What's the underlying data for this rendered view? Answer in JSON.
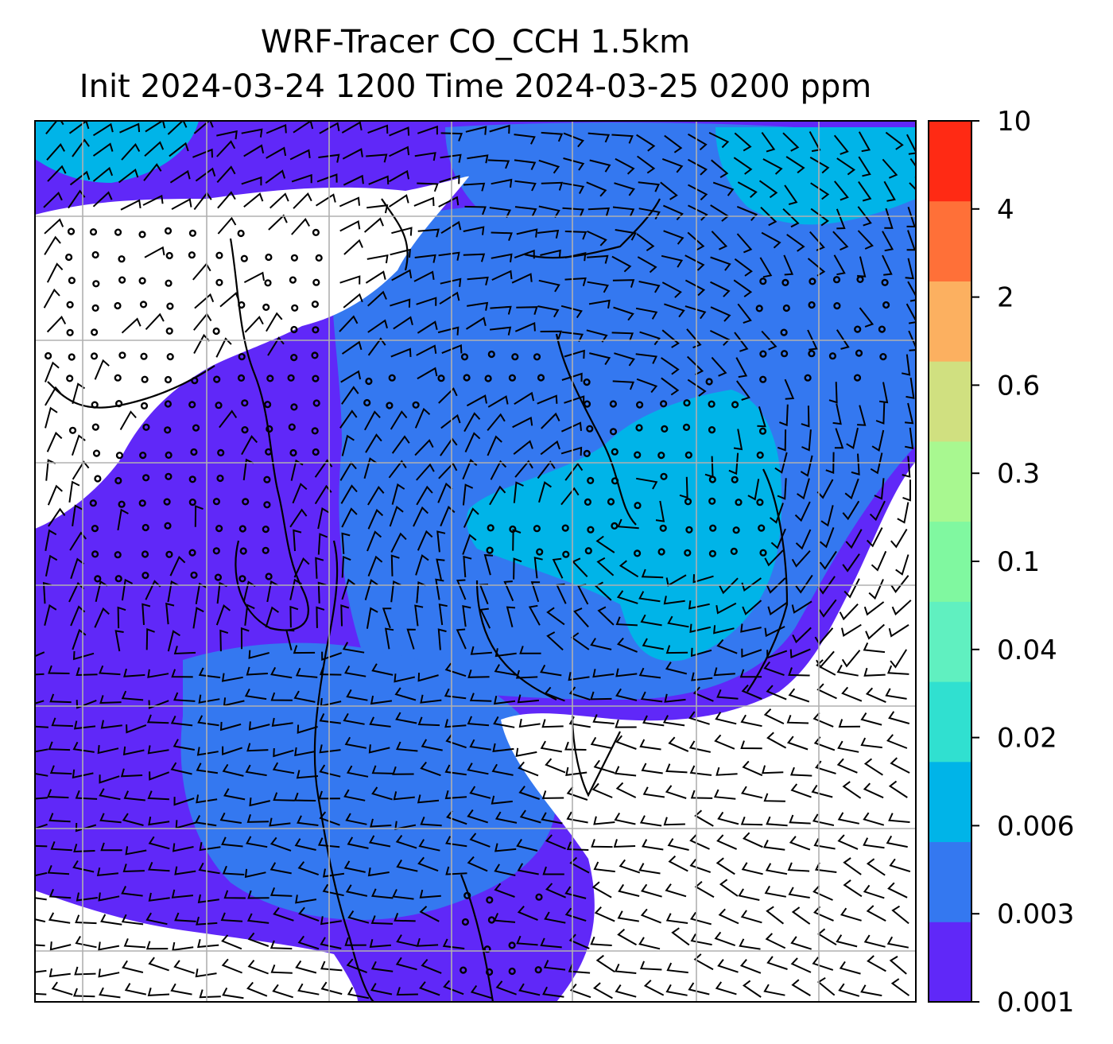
{
  "title": {
    "line1": "WRF-Tracer CO_CCH 1.5km",
    "line2": "Init 2024-03-24 1200 Time 2024-03-25 0200 ppm"
  },
  "map": {
    "field": "CO_CCH tracer concentration",
    "units": "ppm",
    "overlay": "wind barbs (calm circles shown as open dots)",
    "gridlines": true,
    "coastlines": true,
    "fill_levels": [
      {
        "level": "0.001-0.003",
        "color": "#6028f8"
      },
      {
        "level": "0.003-0.006",
        "color": "#3478f0"
      },
      {
        "level": "0.006-0.02",
        "color": "#00b4e8"
      },
      {
        "level": "below 0.001",
        "color": "#ffffff"
      }
    ]
  },
  "colorbar": {
    "ticks": [
      "0.001",
      "0.003",
      "0.006",
      "0.02",
      "0.04",
      "0.1",
      "0.3",
      "0.6",
      "2",
      "4",
      "10"
    ],
    "colors": [
      "#6028f8",
      "#3478f0",
      "#00b4e8",
      "#30e0d0",
      "#60f0c0",
      "#80f8a0",
      "#a8f890",
      "#d0e080",
      "#fcb060",
      "#ff7038",
      "#ff2a14"
    ]
  }
}
